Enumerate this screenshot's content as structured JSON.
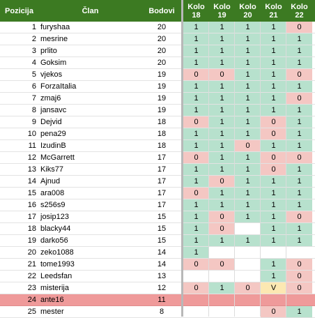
{
  "header": {
    "pozicija": "Pozicija",
    "clan": "Član",
    "bodovi": "Bodovi",
    "kola": [
      {
        "line1": "Kolo",
        "line2": "18"
      },
      {
        "line1": "Kolo",
        "line2": "19"
      },
      {
        "line1": "Kolo",
        "line2": "20"
      },
      {
        "line1": "Kolo",
        "line2": "21"
      },
      {
        "line1": "Kolo",
        "line2": "22"
      }
    ]
  },
  "colors": {
    "header_bg": "#3c7a22",
    "win": "#b7e1cd",
    "loss": "#f4c7c3",
    "pending": "#fce8b2",
    "highlight_row": "#ef9a9a"
  },
  "rows": [
    {
      "poz": "1",
      "clan": "furyshaa",
      "bodovi": "20",
      "kola": [
        "1",
        "1",
        "1",
        "1",
        "0"
      ]
    },
    {
      "poz": "2",
      "clan": "mesrine",
      "bodovi": "20",
      "kola": [
        "1",
        "1",
        "1",
        "1",
        "1"
      ]
    },
    {
      "poz": "3",
      "clan": "prlito",
      "bodovi": "20",
      "kola": [
        "1",
        "1",
        "1",
        "1",
        "1"
      ]
    },
    {
      "poz": "4",
      "clan": "Goksim",
      "bodovi": "20",
      "kola": [
        "1",
        "1",
        "1",
        "1",
        "1"
      ]
    },
    {
      "poz": "5",
      "clan": "vjekos",
      "bodovi": "19",
      "kola": [
        "0",
        "0",
        "1",
        "1",
        "0"
      ]
    },
    {
      "poz": "6",
      "clan": "ForzaItalia",
      "bodovi": "19",
      "kola": [
        "1",
        "1",
        "1",
        "1",
        "1"
      ]
    },
    {
      "poz": "7",
      "clan": "zmaj6",
      "bodovi": "19",
      "kola": [
        "1",
        "1",
        "1",
        "1",
        "0"
      ]
    },
    {
      "poz": "8",
      "clan": "jansavc",
      "bodovi": "19",
      "kola": [
        "1",
        "1",
        "1",
        "1",
        "1"
      ]
    },
    {
      "poz": "9",
      "clan": "Dejvid",
      "bodovi": "18",
      "kola": [
        "0",
        "1",
        "1",
        "0",
        "1"
      ]
    },
    {
      "poz": "10",
      "clan": "pena29",
      "bodovi": "18",
      "kola": [
        "1",
        "1",
        "1",
        "0",
        "1"
      ]
    },
    {
      "poz": "11",
      "clan": "IzudinB",
      "bodovi": "18",
      "kola": [
        "1",
        "1",
        "0",
        "1",
        "1"
      ]
    },
    {
      "poz": "12",
      "clan": "McGarrett",
      "bodovi": "17",
      "kola": [
        "0",
        "1",
        "1",
        "0",
        "0"
      ]
    },
    {
      "poz": "13",
      "clan": "Kiks77",
      "bodovi": "17",
      "kola": [
        "1",
        "1",
        "1",
        "0",
        "1"
      ]
    },
    {
      "poz": "14",
      "clan": "Ajnud",
      "bodovi": "17",
      "kola": [
        "1",
        "0",
        "1",
        "1",
        "1"
      ]
    },
    {
      "poz": "15",
      "clan": "ara008",
      "bodovi": "17",
      "kola": [
        "0",
        "1",
        "1",
        "1",
        "1"
      ]
    },
    {
      "poz": "16",
      "clan": "s256s9",
      "bodovi": "17",
      "kola": [
        "1",
        "1",
        "1",
        "1",
        "1"
      ]
    },
    {
      "poz": "17",
      "clan": "josip123",
      "bodovi": "15",
      "kola": [
        "1",
        "0",
        "1",
        "1",
        "0"
      ]
    },
    {
      "poz": "18",
      "clan": "blacky44",
      "bodovi": "15",
      "kola": [
        "1",
        "0",
        "",
        "1",
        "1"
      ]
    },
    {
      "poz": "19",
      "clan": "darko56",
      "bodovi": "15",
      "kola": [
        "1",
        "1",
        "1",
        "1",
        "1"
      ]
    },
    {
      "poz": "20",
      "clan": "zeko1088",
      "bodovi": "14",
      "kola": [
        "1",
        "",
        "",
        "",
        ""
      ]
    },
    {
      "poz": "21",
      "clan": "tome1993",
      "bodovi": "14",
      "kola": [
        "0",
        "0",
        "",
        "1",
        "0"
      ]
    },
    {
      "poz": "22",
      "clan": "Leedsfan",
      "bodovi": "13",
      "kola": [
        "",
        "",
        "",
        "1",
        "0"
      ]
    },
    {
      "poz": "23",
      "clan": "misterija",
      "bodovi": "12",
      "kola": [
        "0",
        "1",
        "0",
        "V",
        "0"
      ]
    },
    {
      "poz": "24",
      "clan": "ante16",
      "bodovi": "11",
      "kola": [
        "",
        "",
        "",
        "",
        ""
      ],
      "highlight": true
    },
    {
      "poz": "25",
      "clan": "mester",
      "bodovi": "8",
      "kola": [
        "",
        "",
        "",
        "0",
        "1"
      ]
    }
  ]
}
